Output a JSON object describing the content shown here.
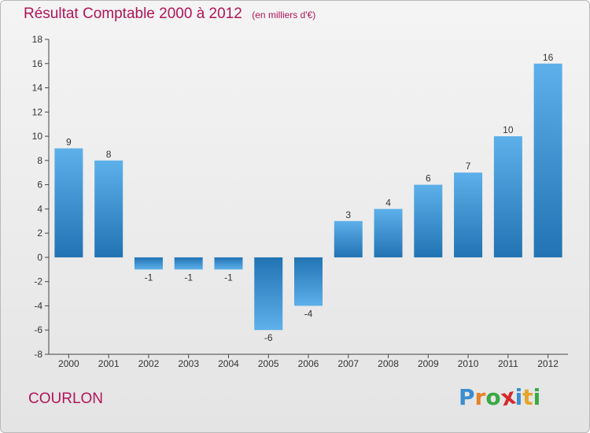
{
  "title": "Résultat Comptable 2000 à 2012",
  "subtitle": "(en milliers d'€)",
  "commune": "COURLON",
  "logo": {
    "text": "Proxiti",
    "letters": [
      {
        "ch": "P",
        "color": "#3a8dd1"
      },
      {
        "ch": "r",
        "color": "#e5812a"
      },
      {
        "ch": "o",
        "color": "#3aa844"
      },
      {
        "ch": "x",
        "color": "#d42a2a"
      },
      {
        "ch": "i",
        "color": "#3a8dd1"
      },
      {
        "ch": "t",
        "color": "#e5a52a"
      },
      {
        "ch": "i",
        "color": "#3aa844"
      }
    ]
  },
  "colors": {
    "accent": "#b0145a",
    "bar_light": "#5db0ea",
    "bar_dark": "#2173b3"
  },
  "chart_data": {
    "type": "bar",
    "categories": [
      "2000",
      "2001",
      "2002",
      "2003",
      "2004",
      "2005",
      "2006",
      "2007",
      "2008",
      "2009",
      "2010",
      "2011",
      "2012"
    ],
    "values": [
      9,
      8,
      -1,
      -1,
      -1,
      -6,
      -4,
      3,
      4,
      6,
      7,
      10,
      16
    ],
    "value_labels": [
      "9",
      "8",
      "-1",
      "-1",
      "-1",
      "-6",
      "-4",
      "3",
      "4",
      "6",
      "7",
      "10",
      "16"
    ],
    "ylim": [
      -8,
      18
    ],
    "yticks": [
      -8,
      -6,
      -4,
      -2,
      0,
      2,
      4,
      6,
      8,
      10,
      12,
      14,
      16,
      18
    ],
    "ytick_labels": [
      "-8",
      "-6",
      "-4",
      "-2",
      "0",
      "2",
      "4",
      "6",
      "8",
      "10",
      "12",
      "14",
      "16",
      "18"
    ],
    "grid": false
  }
}
